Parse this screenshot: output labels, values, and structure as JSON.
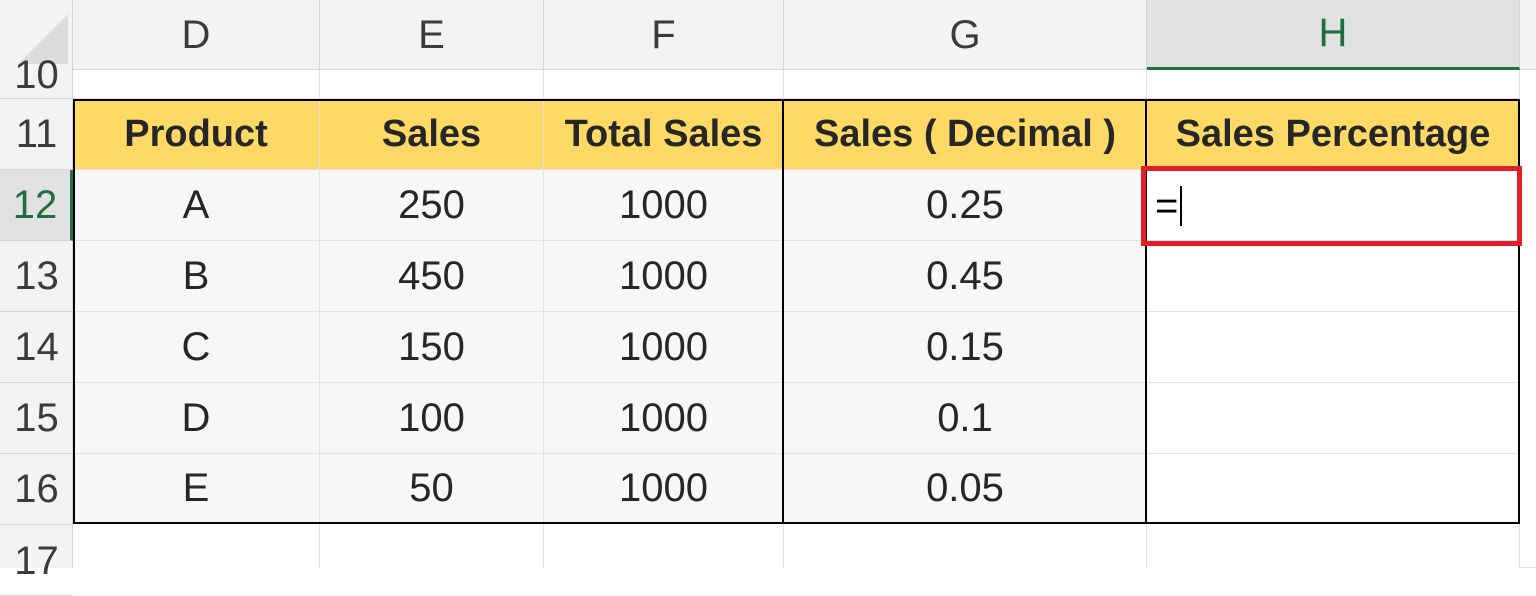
{
  "columns": [
    "D",
    "E",
    "F",
    "G",
    "H"
  ],
  "selected_column": "H",
  "rows": [
    "10",
    "11",
    "12",
    "13",
    "14",
    "15",
    "16",
    "17"
  ],
  "selected_row": "12",
  "table": {
    "headers": [
      "Product",
      "Sales",
      "Total Sales",
      "Sales ( Decimal )",
      "Sales Percentage"
    ],
    "rows": [
      [
        "A",
        "250",
        "1000",
        "0.25",
        ""
      ],
      [
        "B",
        "450",
        "1000",
        "0.45",
        ""
      ],
      [
        "C",
        "150",
        "1000",
        "0.15",
        ""
      ],
      [
        "D",
        "100",
        "1000",
        "0.1",
        ""
      ],
      [
        "E",
        "50",
        "1000",
        "0.05",
        ""
      ]
    ]
  },
  "active_cell": {
    "ref": "H12",
    "entry": "="
  },
  "colors": {
    "header_fill": "#ffd966",
    "highlight_border": "#e51e2a",
    "selection_green": "#1e7145"
  }
}
